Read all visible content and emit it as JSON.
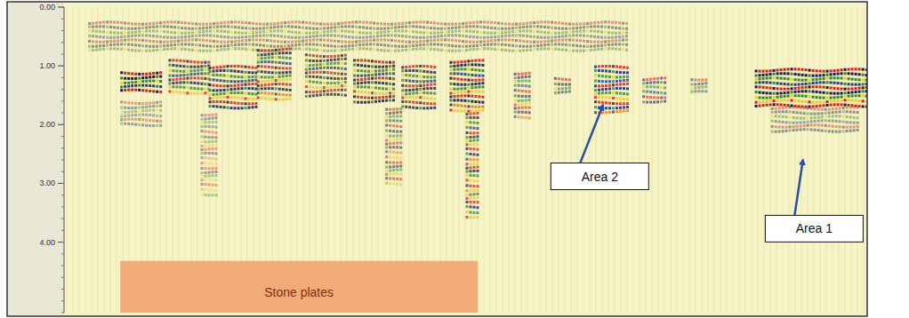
{
  "chart_data": {
    "type": "radargram",
    "ylim": [
      0,
      5.2
    ],
    "yticks": [
      {
        "value": 0,
        "label": "0.00"
      },
      {
        "value": 1,
        "label": "1.00"
      },
      {
        "value": 2,
        "label": "2.00"
      },
      {
        "value": 3,
        "label": "3.00"
      },
      {
        "value": 4,
        "label": "4.00"
      }
    ],
    "xlim": [
      0,
      100
    ],
    "tick_labels": "y",
    "reflections": [
      {
        "x": [
          3,
          70
        ],
        "depth": [
          0.25,
          0.75
        ],
        "amplitude": 0.45
      },
      {
        "x": [
          7,
          12
        ],
        "depth": [
          1.1,
          1.45
        ],
        "amplitude": 1
      },
      {
        "x": [
          13,
          18
        ],
        "depth": [
          0.9,
          1.5
        ],
        "amplitude": 0.8
      },
      {
        "x": [
          18,
          24
        ],
        "depth": [
          1.0,
          1.7
        ],
        "amplitude": 0.85
      },
      {
        "x": [
          24,
          28
        ],
        "depth": [
          0.7,
          1.6
        ],
        "amplitude": 0.8
      },
      {
        "x": [
          30,
          35
        ],
        "depth": [
          0.8,
          1.5
        ],
        "amplitude": 0.75
      },
      {
        "x": [
          36,
          41
        ],
        "depth": [
          0.9,
          1.6
        ],
        "amplitude": 0.85
      },
      {
        "x": [
          42,
          46
        ],
        "depth": [
          1.0,
          1.7
        ],
        "amplitude": 0.8
      },
      {
        "x": [
          48,
          52
        ],
        "depth": [
          0.9,
          1.8
        ],
        "amplitude": 0.9
      },
      {
        "x": [
          40,
          42
        ],
        "depth": [
          1.7,
          3.0
        ],
        "amplitude": 0.55
      },
      {
        "x": [
          50,
          51.5
        ],
        "depth": [
          1.8,
          3.6
        ],
        "amplitude": 0.75
      },
      {
        "x": [
          17,
          19
        ],
        "depth": [
          1.8,
          3.2
        ],
        "amplitude": 0.4
      },
      {
        "x": [
          7,
          12
        ],
        "depth": [
          1.6,
          2.0
        ],
        "amplitude": 0.4
      },
      {
        "x": [
          56,
          58
        ],
        "depth": [
          1.1,
          1.9
        ],
        "amplitude": 0.6
      },
      {
        "x": [
          61,
          63
        ],
        "depth": [
          1.2,
          1.5
        ],
        "amplitude": 0.6
      },
      {
        "x": [
          66,
          70
        ],
        "depth": [
          1.0,
          1.8
        ],
        "amplitude": 0.8
      },
      {
        "x": [
          72,
          75
        ],
        "depth": [
          1.2,
          1.6
        ],
        "amplitude": 0.6
      },
      {
        "x": [
          78,
          80
        ],
        "depth": [
          1.2,
          1.5
        ],
        "amplitude": 0.5
      },
      {
        "x": [
          86,
          100
        ],
        "depth": [
          1.05,
          1.7
        ],
        "amplitude": 1
      },
      {
        "x": [
          88,
          99
        ],
        "depth": [
          1.7,
          2.1
        ],
        "amplitude": 0.45
      }
    ],
    "annotations": [
      {
        "text": "Area 2",
        "x": 66.7,
        "depth": 2.88,
        "target": [
          67.1,
          1.67
        ]
      },
      {
        "text": "Area 1",
        "x": 93.4,
        "depth": 3.77,
        "target": [
          92.0,
          2.6
        ]
      }
    ],
    "zones": [
      {
        "text": "Stone plates",
        "x": [
          7,
          51.5
        ],
        "depth": [
          4.32,
          5.2
        ]
      }
    ]
  }
}
